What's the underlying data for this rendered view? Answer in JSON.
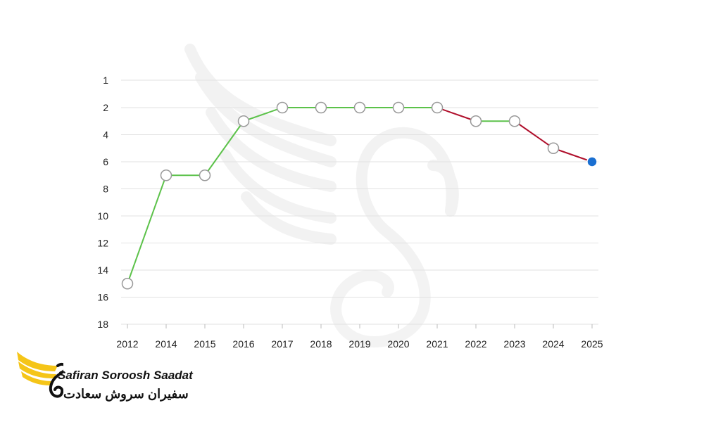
{
  "chart_data": {
    "type": "line",
    "x": [
      "2012",
      "2014",
      "2015",
      "2016",
      "2017",
      "2018",
      "2019",
      "2020",
      "2021",
      "2022",
      "2023",
      "2024",
      "2025"
    ],
    "values": [
      15,
      7,
      7,
      3,
      2,
      2,
      2,
      2,
      2,
      3,
      3,
      5,
      6
    ],
    "y_ticks": [
      1,
      2,
      4,
      6,
      8,
      10,
      12,
      14,
      16,
      18
    ],
    "ylim": [
      1,
      18
    ],
    "y_inverted": true,
    "grid": true,
    "colors": {
      "rising": "#5cc24a",
      "falling": "#b0102c",
      "marker_fill": "#ffffff",
      "marker_stroke": "#999999",
      "current_marker": "#1a6fd1"
    }
  },
  "brand": {
    "name_en": "Safiran Soroosh Saadat",
    "name_fa": "سفیران سروش سعادت"
  }
}
